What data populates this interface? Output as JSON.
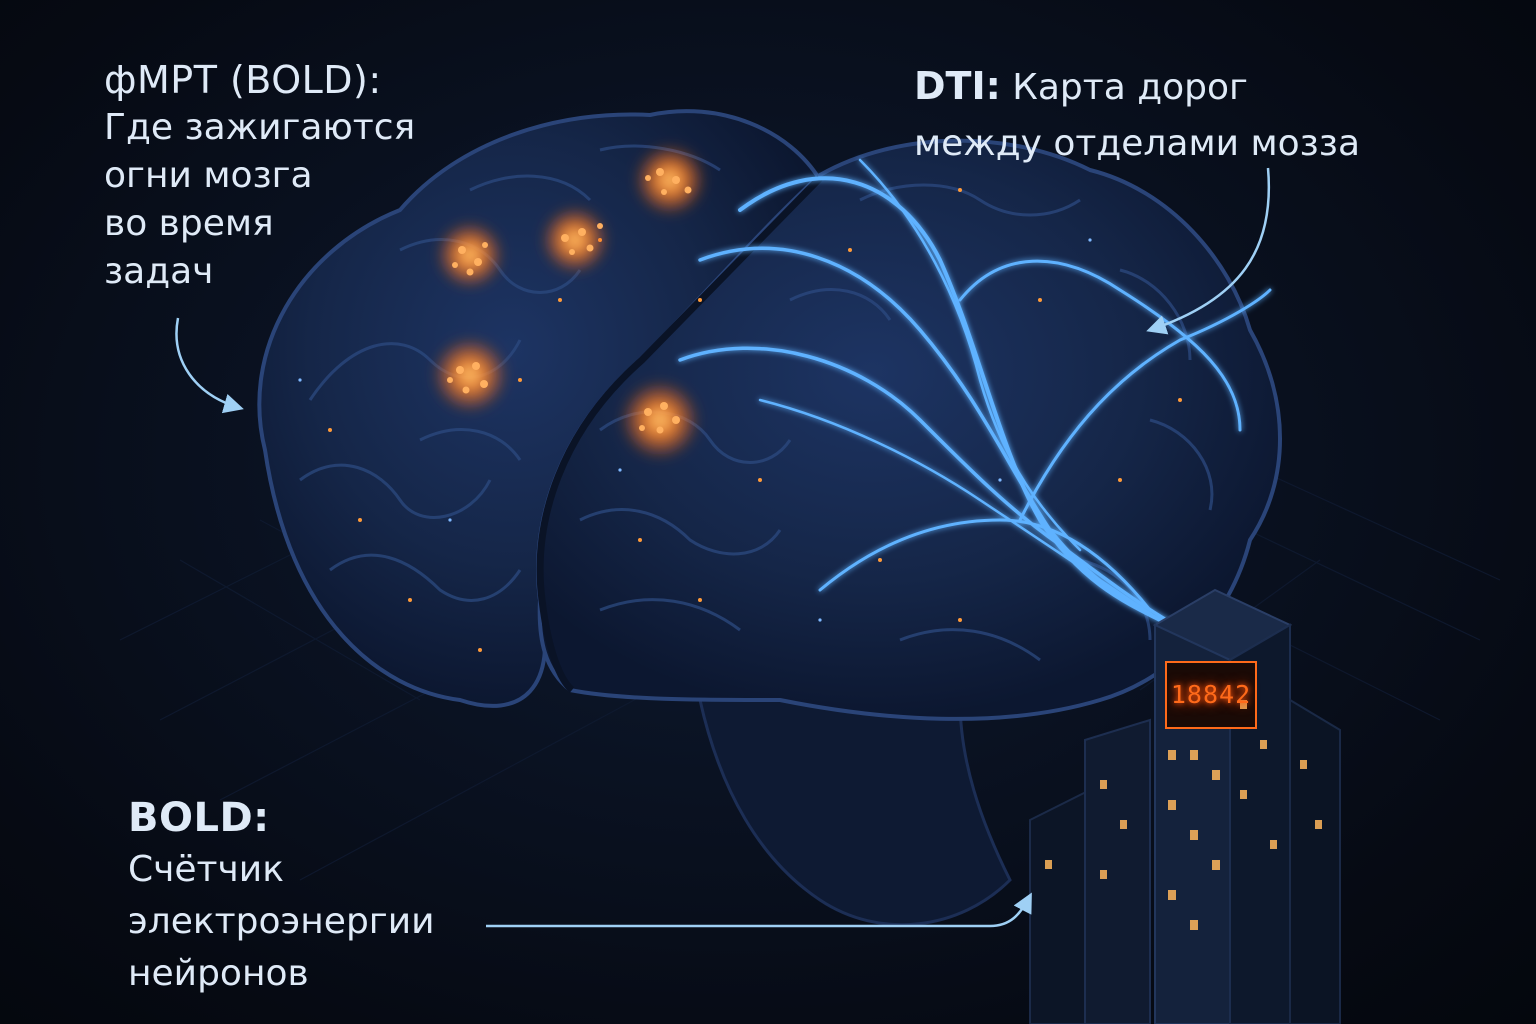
{
  "labels": {
    "fmri": {
      "title": "фМРТ (BOLD):",
      "text": "Где зажигаются\nогни мозга\nво время\nзадач"
    },
    "dti": {
      "title": "DTI:",
      "text": "Карта дорог\nмежду отделами мозза"
    },
    "bold": {
      "title": "BOLD:",
      "text": "Счётчик\nэлектроэнергии\nнейронов"
    }
  },
  "meter": {
    "reading": "18842"
  },
  "colors": {
    "brain_fill": "#16274a",
    "brain_outline": "#2a4478",
    "activation": "#ff8a2a",
    "fiber": "#5fb2ff",
    "text": "#dfeaf7",
    "arrow": "#9fd0f5",
    "meter_digits": "#ff6a1a"
  }
}
